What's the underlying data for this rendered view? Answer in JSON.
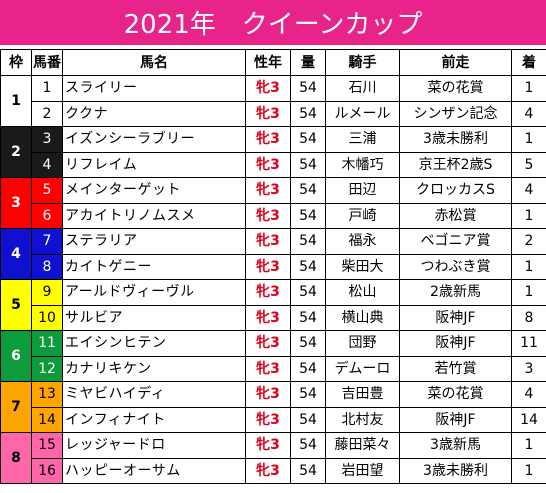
{
  "title": "2021年　クイーンカップ",
  "columns": [
    "枠",
    "馬番",
    "馬名",
    "性年",
    "量",
    "騎手",
    "前走",
    "着"
  ],
  "frames": [
    {
      "waku": "1",
      "bg": "#ffffff",
      "fg": "#000000",
      "rows": [
        {
          "num": "1",
          "num_bg": "#ffffff",
          "num_fg": "#000000",
          "horse": "スライリー",
          "sex": "牝3",
          "weight": "54",
          "jockey": "石川",
          "prev": "菜の花賞",
          "place": "1"
        },
        {
          "num": "2",
          "num_bg": "#ffffff",
          "num_fg": "#000000",
          "horse": "ククナ",
          "sex": "牝3",
          "weight": "54",
          "jockey": "ルメール",
          "prev": "シンザン記念",
          "place": "4"
        }
      ]
    },
    {
      "waku": "2",
      "bg": "#1a1a1a",
      "fg": "#ffffff",
      "rows": [
        {
          "num": "3",
          "num_bg": "#1a1a1a",
          "num_fg": "#ffffff",
          "horse": "イズンシーラブリー",
          "sex": "牝3",
          "weight": "54",
          "jockey": "三浦",
          "prev": "3歳未勝利",
          "place": "1"
        },
        {
          "num": "4",
          "num_bg": "#1a1a1a",
          "num_fg": "#ffffff",
          "horse": "リフレイム",
          "sex": "牝3",
          "weight": "54",
          "jockey": "木幡巧",
          "prev": "京王杯2歳S",
          "place": "5"
        }
      ]
    },
    {
      "waku": "3",
      "bg": "#ff0000",
      "fg": "#ffffff",
      "rows": [
        {
          "num": "5",
          "num_bg": "#ff0000",
          "num_fg": "#ffffff",
          "horse": "メインターゲット",
          "sex": "牝3",
          "weight": "54",
          "jockey": "田辺",
          "prev": "クロッカスS",
          "place": "4"
        },
        {
          "num": "6",
          "num_bg": "#ff0000",
          "num_fg": "#ffffff",
          "horse": "アカイトリノムスメ",
          "sex": "牝3",
          "weight": "54",
          "jockey": "戸崎",
          "prev": "赤松賞",
          "place": "1"
        }
      ]
    },
    {
      "waku": "4",
      "bg": "#1010d0",
      "fg": "#ffffff",
      "rows": [
        {
          "num": "7",
          "num_bg": "#1010d0",
          "num_fg": "#ffffff",
          "horse": "ステラリア",
          "sex": "牝3",
          "weight": "54",
          "jockey": "福永",
          "prev": "ベゴニア賞",
          "place": "2"
        },
        {
          "num": "8",
          "num_bg": "#1010d0",
          "num_fg": "#ffffff",
          "horse": "カイトゲニー",
          "sex": "牝3",
          "weight": "54",
          "jockey": "柴田大",
          "prev": "つわぶき賞",
          "place": "1"
        }
      ]
    },
    {
      "waku": "5",
      "bg": "#ffff00",
      "fg": "#000000",
      "rows": [
        {
          "num": "9",
          "num_bg": "#ffff00",
          "num_fg": "#000000",
          "horse": "アールドヴィーヴル",
          "sex": "牝3",
          "weight": "54",
          "jockey": "松山",
          "prev": "2歳新馬",
          "place": "1"
        },
        {
          "num": "10",
          "num_bg": "#ffff00",
          "num_fg": "#000000",
          "horse": "サルビア",
          "sex": "牝3",
          "weight": "54",
          "jockey": "横山典",
          "prev": "阪神JF",
          "place": "8"
        }
      ]
    },
    {
      "waku": "6",
      "bg": "#0d9b3c",
      "fg": "#ffffff",
      "rows": [
        {
          "num": "11",
          "num_bg": "#0d9b3c",
          "num_fg": "#ffffff",
          "horse": "エイシンヒテン",
          "sex": "牝3",
          "weight": "54",
          "jockey": "団野",
          "prev": "阪神JF",
          "place": "11"
        },
        {
          "num": "12",
          "num_bg": "#0d9b3c",
          "num_fg": "#ffffff",
          "horse": "カナリキケン",
          "sex": "牝3",
          "weight": "54",
          "jockey": "デムーロ",
          "prev": "若竹賞",
          "place": "3"
        }
      ]
    },
    {
      "waku": "7",
      "bg": "#ffa500",
      "fg": "#000000",
      "rows": [
        {
          "num": "13",
          "num_bg": "#ffa500",
          "num_fg": "#000000",
          "horse": "ミヤビハイディ",
          "sex": "牝3",
          "weight": "54",
          "jockey": "吉田豊",
          "prev": "菜の花賞",
          "place": "4"
        },
        {
          "num": "14",
          "num_bg": "#ffa500",
          "num_fg": "#000000",
          "horse": "インフィナイト",
          "sex": "牝3",
          "weight": "54",
          "jockey": "北村友",
          "prev": "阪神JF",
          "place": "14"
        }
      ]
    },
    {
      "waku": "8",
      "bg": "#ff66aa",
      "fg": "#000000",
      "rows": [
        {
          "num": "15",
          "num_bg": "#ff66aa",
          "num_fg": "#000000",
          "horse": "レッジャードロ",
          "sex": "牝3",
          "weight": "54",
          "jockey": "藤田菜々",
          "prev": "3歳新馬",
          "place": "1"
        },
        {
          "num": "16",
          "num_bg": "#ff66aa",
          "num_fg": "#000000",
          "horse": "ハッピーオーサム",
          "sex": "牝3",
          "weight": "54",
          "jockey": "岩田望",
          "prev": "3歳未勝利",
          "place": "1"
        }
      ]
    }
  ]
}
